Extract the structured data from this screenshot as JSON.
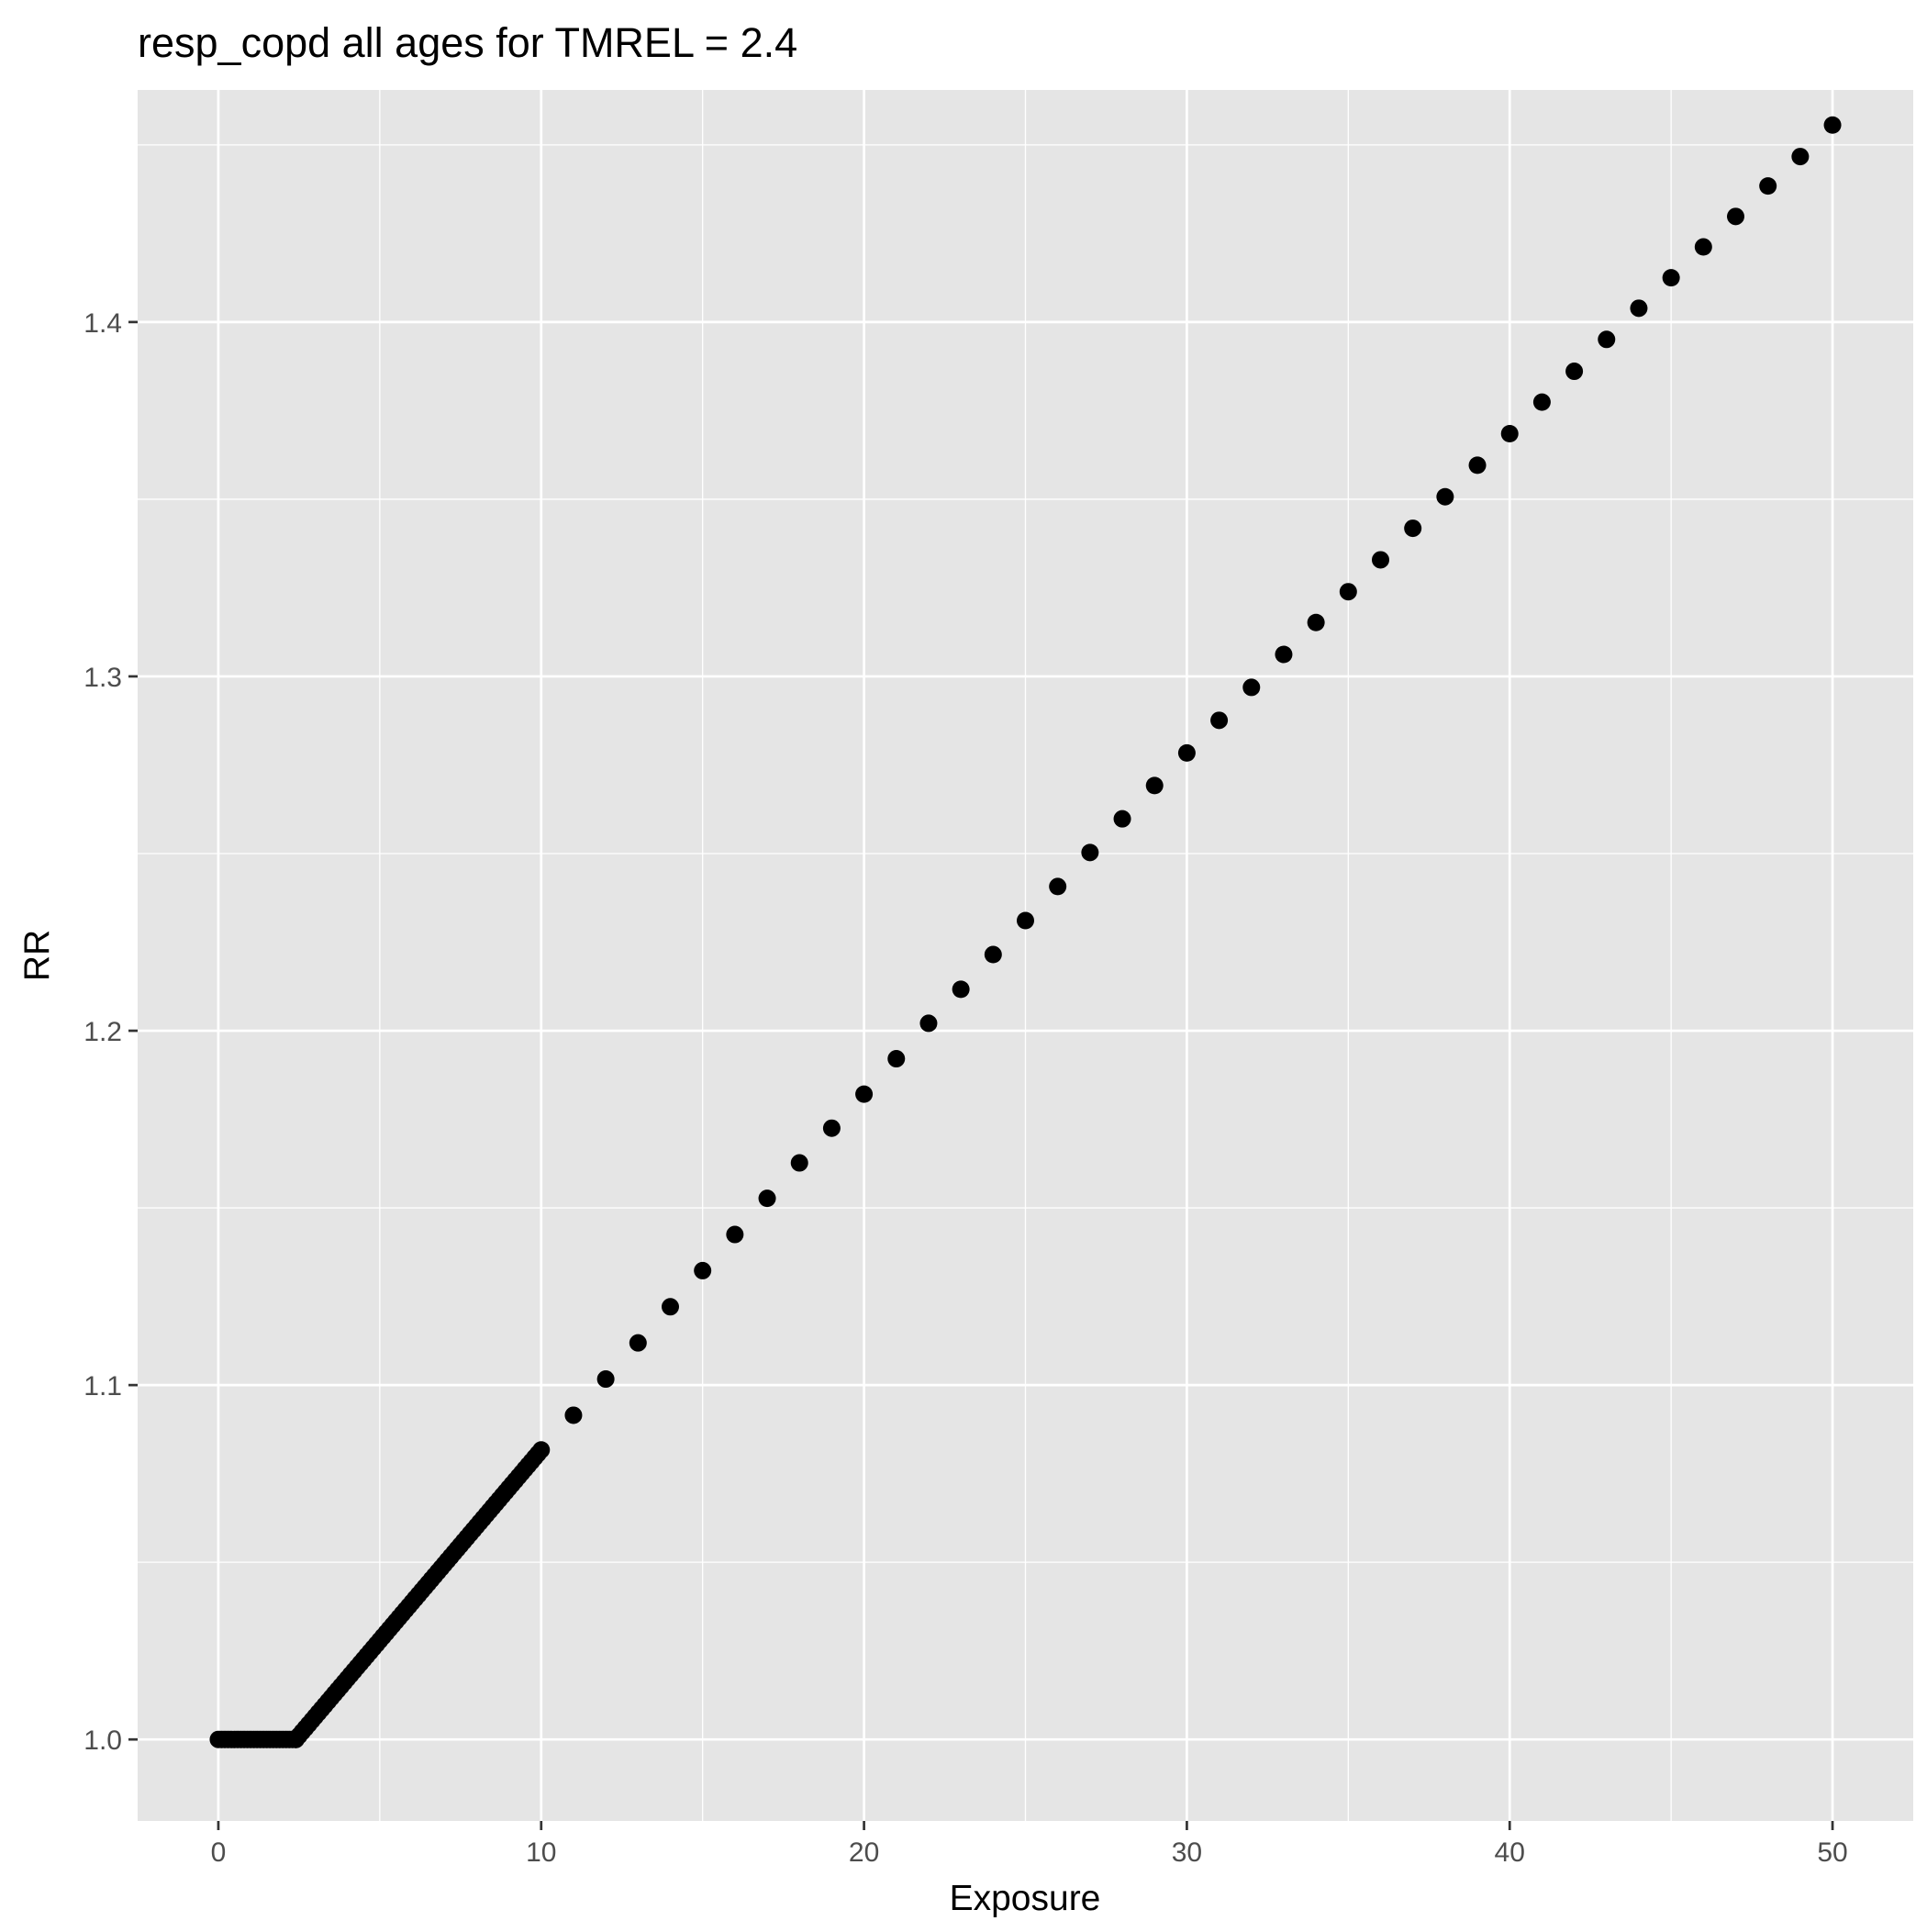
{
  "chart_data": {
    "type": "scatter",
    "title": "resp_copd all ages for TMREL = 2.4",
    "xlabel": "Exposure",
    "ylabel": "RR",
    "xlim": [
      -2.5,
      52.5
    ],
    "ylim": [
      0.977,
      1.4655
    ],
    "x_ticks": [
      0,
      10,
      20,
      30,
      40,
      50
    ],
    "x_tick_labels": [
      "0",
      "10",
      "20",
      "30",
      "40",
      "50"
    ],
    "y_ticks": [
      1.0,
      1.1,
      1.2,
      1.3,
      1.4
    ],
    "y_tick_labels": [
      "1.0",
      "1.1",
      "1.2",
      "1.3",
      "1.4"
    ],
    "grid": true,
    "legend": "none",
    "colors": {
      "panel": "#e5e5e5",
      "grid": "#ffffff",
      "point": "#000000"
    },
    "series": [
      {
        "segments": [
          {
            "x_from": 0,
            "x_to": 2.4,
            "step": 0.1,
            "rr": "1.0"
          },
          {
            "x_from": 2.4,
            "x_to": 10,
            "step": 0.1,
            "rr_from": 1.0,
            "rr_to": 1.0817
          }
        ],
        "x": [
          11,
          12,
          13,
          14,
          15,
          16,
          17,
          18,
          19,
          20,
          21,
          22,
          23,
          24,
          25,
          26,
          27,
          28,
          29,
          30,
          31,
          32,
          33,
          34,
          35,
          36,
          37,
          38,
          39,
          40,
          41,
          42,
          43,
          44,
          45,
          46,
          47,
          48,
          49,
          50
        ],
        "y": [
          1.0915,
          1.1017,
          1.1119,
          1.1221,
          1.1323,
          1.1425,
          1.1527,
          1.1627,
          1.1725,
          1.1821,
          1.1921,
          1.2021,
          1.2117,
          1.2215,
          1.2311,
          1.2407,
          1.2503,
          1.2598,
          1.2692,
          1.2784,
          1.2876,
          1.2969,
          1.3062,
          1.3152,
          1.3239,
          1.3329,
          1.3418,
          1.3507,
          1.3596,
          1.3685,
          1.3774,
          1.3861,
          1.3951,
          1.4039,
          1.4125,
          1.4212,
          1.4298,
          1.4384,
          1.4467,
          1.4556
        ]
      }
    ]
  }
}
